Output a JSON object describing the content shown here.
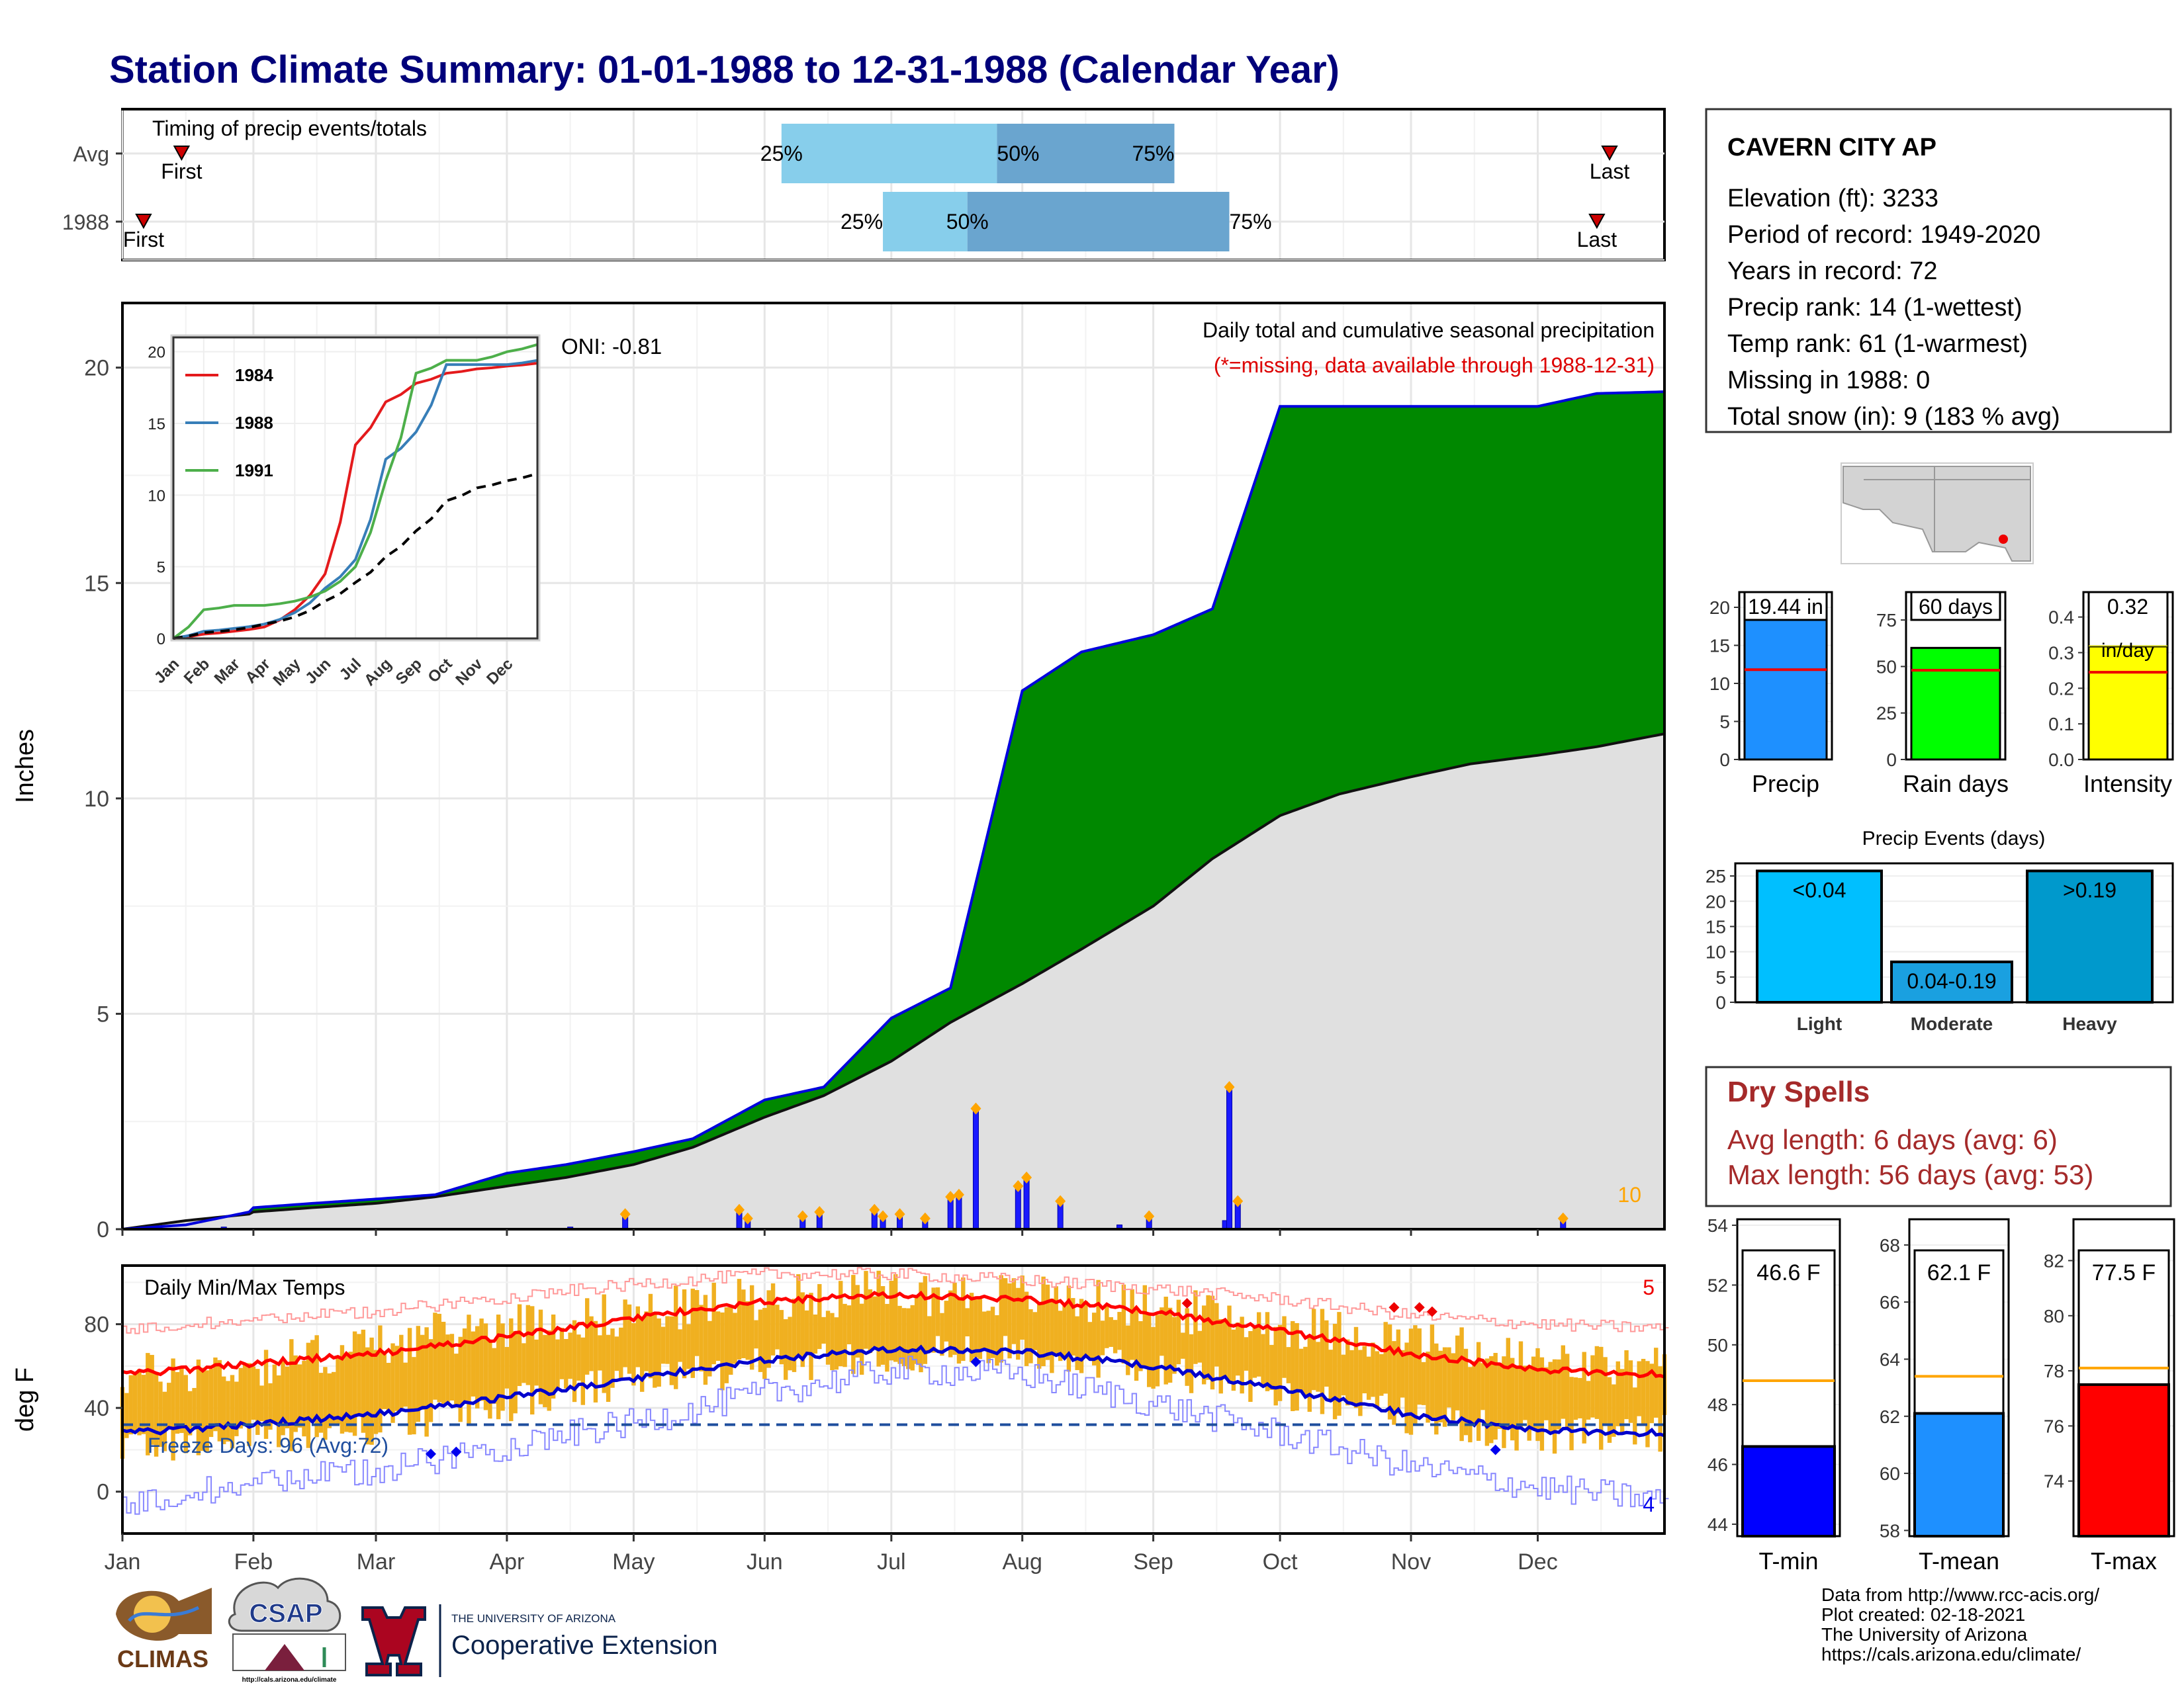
{
  "title": "Station Climate Summary: 01-01-1988 to 12-31-1988 (Calendar Year)",
  "colors": {
    "title": "#00007a",
    "precip_green": "#008800",
    "precip_brown": "#7a4a0a",
    "avg_gray": "#e0e0e0",
    "daily_bar_blue": "#1a1aff",
    "quart_light": "#87ceeb",
    "quart_dark": "#6aa5cf",
    "temp_bar": "#f0b020",
    "tmax_line": "#ff0000",
    "tmin_line": "#0000cc",
    "dry_spell_text": "#a52a2a",
    "missing_note": "#dd0000",
    "extreme_count": "#ffa500"
  },
  "timing": {
    "label": "Timing of precip events/totals",
    "rows": [
      {
        "name": "Avg",
        "first_label": "First",
        "last_label": "Last",
        "first_date": "01-15",
        "last_date": "12-18",
        "q25": "06-05",
        "q50": "07-26",
        "q75": "09-06",
        "q25_label": "25%",
        "q50_label": "50%",
        "q75_label": "75%"
      },
      {
        "name": "1988",
        "first_label": "First",
        "last_label": "Last",
        "first_date": "01-06",
        "last_date": "12-15",
        "q25": "06-29",
        "q50": "07-19",
        "q75": "09-19",
        "q25_label": "25%",
        "q50_label": "50%",
        "q75_label": "75%"
      }
    ]
  },
  "main_panel": {
    "ylabel": "Inches",
    "yticks": [
      "0",
      "5",
      "10",
      "15",
      "20"
    ],
    "header": "Daily total and cumulative seasonal precipitation",
    "missing_note": "(*=missing, data available through 1988-12-31)",
    "oni": "ONI: -0.81",
    "extreme_count": "10"
  },
  "inset": {
    "yticks": [
      "0",
      "5",
      "10",
      "15",
      "20"
    ],
    "months": [
      "Jan",
      "Feb",
      "Mar",
      "Apr",
      "May",
      "Jun",
      "Jul",
      "Aug",
      "Sep",
      "Oct",
      "Nov",
      "Dec"
    ],
    "legend": [
      {
        "name": "1984",
        "color": "#e41a1c"
      },
      {
        "name": "1988",
        "color": "#377eb8"
      },
      {
        "name": "1991",
        "color": "#4daf4a"
      }
    ]
  },
  "temp_panel": {
    "ylabel": "deg F",
    "label": "Daily Min/Max Temps",
    "yticks": [
      "0",
      "40",
      "80"
    ],
    "freeze_label": "Freeze Days: 96 (Avg:72)",
    "hot_count": "5",
    "cold_count": "4",
    "freeze_line": 32
  },
  "x_months": [
    "Jan",
    "Feb",
    "Mar",
    "Apr",
    "May",
    "Jun",
    "Jul",
    "Aug",
    "Sep",
    "Oct",
    "Nov",
    "Dec"
  ],
  "station": {
    "name": "CAVERN CITY AP",
    "lines": [
      "Elevation (ft): 3233",
      "Period of record: 1949-2020",
      "Years in record: 72",
      "Precip rank: 14 (1-wettest)",
      "Temp rank: 61 (1-warmest)",
      "Missing in 1988: 0",
      "Total snow (in): 9 (183 % avg)"
    ]
  },
  "summary_bars": [
    {
      "label": "Precip",
      "value_label": "19.44 in",
      "value": 19.44,
      "avg": 11.8,
      "ymax": 22,
      "yticks": [
        "0",
        "5",
        "10",
        "15",
        "20"
      ],
      "color": "#1e90ff"
    },
    {
      "label": "Rain days",
      "value_label": "60 days",
      "value": 60,
      "avg": 48,
      "ymax": 90,
      "yticks": [
        "0",
        "25",
        "50",
        "75"
      ],
      "color": "#00ff00"
    },
    {
      "label": "Intensity",
      "value_label": "0.32",
      "value_label2": "in/day",
      "value": 0.32,
      "avg": 0.245,
      "ymax": 0.47,
      "yticks": [
        "0.0",
        "0.1",
        "0.2",
        "0.3",
        "0.4"
      ],
      "color": "#ffff00"
    }
  ],
  "precip_events": {
    "title": "Precip Events (days)",
    "yticks": [
      "0",
      "5",
      "10",
      "15",
      "20",
      "25"
    ],
    "bars": [
      {
        "category": "Light",
        "label": "<0.04",
        "value": 26,
        "color": "#00bfff"
      },
      {
        "category": "Moderate",
        "label": "0.04-0.19",
        "value": 8,
        "color": "#1aa0e0"
      },
      {
        "category": "Heavy",
        "label": ">0.19",
        "value": 26,
        "color": "#0099cc"
      }
    ]
  },
  "dry_spells": {
    "title": "Dry Spells",
    "avg_line": "Avg length: 6 days (avg: 6)",
    "max_line": "Max length: 56 days (avg: 53)"
  },
  "temp_bars": [
    {
      "label": "T-min",
      "value_label": "46.6 F",
      "value": 46.6,
      "avg": 48.8,
      "ymin": 43.6,
      "ymax": 54.2,
      "yticks": [
        "44",
        "46",
        "48",
        "50",
        "52",
        "54"
      ],
      "color": "#0000ff"
    },
    {
      "label": "T-mean",
      "value_label": "62.1 F",
      "value": 62.1,
      "avg": 63.4,
      "ymin": 57.8,
      "ymax": 68.9,
      "yticks": [
        "58",
        "60",
        "62",
        "64",
        "66",
        "68"
      ],
      "color": "#1e90ff"
    },
    {
      "label": "T-max",
      "value_label": "77.5 F",
      "value": 77.5,
      "avg": 78.1,
      "ymin": 72.0,
      "ymax": 83.5,
      "yticks": [
        "74",
        "76",
        "78",
        "80",
        "82"
      ],
      "color": "#ff0000"
    }
  ],
  "logos": {
    "climas": "CLIMAS",
    "csap": "CSAP",
    "csap_url": "http://cals.arizona.edu/climate",
    "ua_top": "THE UNIVERSITY OF ARIZONA",
    "ua_bottom": "Cooperative Extension"
  },
  "footer": [
    "Data from http://www.rcc-acis.org/",
    "Plot created: 02-18-2021",
    "The University of Arizona",
    "https://cals.arizona.edu/climate/"
  ],
  "chart_data": [
    {
      "type": "area",
      "title": "Daily total and cumulative seasonal precipitation",
      "ylabel": "Inches",
      "ylim": [
        0,
        21.5
      ],
      "x": [
        "01-01",
        "01-16",
        "01-31",
        "02-01",
        "02-15",
        "03-01",
        "03-15",
        "04-01",
        "04-15",
        "05-01",
        "05-15",
        "06-01",
        "06-15",
        "07-01",
        "07-15",
        "08-01",
        "08-15",
        "09-01",
        "09-15",
        "10-01",
        "10-15",
        "11-01",
        "11-15",
        "12-01",
        "12-15",
        "12-31"
      ],
      "series": [
        {
          "name": "1988",
          "values": [
            0,
            0.1,
            0.4,
            0.5,
            0.6,
            0.7,
            0.8,
            1.3,
            1.5,
            1.8,
            2.1,
            3.0,
            3.3,
            4.9,
            5.6,
            12.5,
            13.4,
            13.8,
            14.4,
            19.1,
            19.1,
            19.1,
            19.1,
            19.1,
            19.4,
            19.44
          ]
        },
        {
          "name": "Avg",
          "values": [
            0,
            0.2,
            0.35,
            0.4,
            0.5,
            0.6,
            0.75,
            1.0,
            1.2,
            1.5,
            1.9,
            2.6,
            3.1,
            3.9,
            4.8,
            5.7,
            6.5,
            7.5,
            8.6,
            9.6,
            10.1,
            10.5,
            10.8,
            11.0,
            11.2,
            11.5
          ]
        }
      ],
      "daily_precip": [
        {
          "date": "01-25",
          "value": 0.05
        },
        {
          "date": "04-16",
          "value": 0.05
        },
        {
          "date": "04-29",
          "value": 0.35
        },
        {
          "date": "05-26",
          "value": 0.45
        },
        {
          "date": "05-28",
          "value": 0.25
        },
        {
          "date": "06-10",
          "value": 0.3
        },
        {
          "date": "06-14",
          "value": 0.4
        },
        {
          "date": "06-27",
          "value": 0.45
        },
        {
          "date": "06-29",
          "value": 0.3
        },
        {
          "date": "07-03",
          "value": 0.35
        },
        {
          "date": "07-09",
          "value": 0.25
        },
        {
          "date": "07-15",
          "value": 0.75
        },
        {
          "date": "07-17",
          "value": 0.8
        },
        {
          "date": "07-21",
          "value": 2.8
        },
        {
          "date": "07-31",
          "value": 1.0
        },
        {
          "date": "08-02",
          "value": 1.2
        },
        {
          "date": "08-10",
          "value": 0.65
        },
        {
          "date": "08-24",
          "value": 0.1
        },
        {
          "date": "08-31",
          "value": 0.3
        },
        {
          "date": "09-18",
          "value": 0.2
        },
        {
          "date": "09-19",
          "value": 3.3
        },
        {
          "date": "09-21",
          "value": 0.65
        },
        {
          "date": "12-07",
          "value": 0.25
        }
      ]
    },
    {
      "type": "line",
      "title": "",
      "x": [
        "Jan",
        "Feb",
        "Mar",
        "Apr",
        "May",
        "Jun",
        "Jul",
        "Aug",
        "Sep",
        "Oct",
        "Nov",
        "Dec",
        "Dec-end"
      ],
      "ylim": [
        0,
        21
      ],
      "series": [
        {
          "name": "1984",
          "values": [
            0,
            0.3,
            0.5,
            0.8,
            2.0,
            4.5,
            13.5,
            16.5,
            17.8,
            18.5,
            18.8,
            19.0,
            19.2
          ]
        },
        {
          "name": "1988",
          "values": [
            0,
            0.5,
            0.7,
            1.0,
            1.8,
            3.5,
            5.5,
            12.5,
            14.4,
            19.1,
            19.1,
            19.1,
            19.4
          ]
        },
        {
          "name": "1991",
          "values": [
            0,
            2.0,
            2.3,
            2.3,
            2.6,
            3.3,
            5.0,
            11.0,
            18.5,
            19.4,
            19.4,
            20.0,
            20.5
          ]
        },
        {
          "name": "Avg",
          "values": [
            0,
            0.4,
            0.6,
            1.0,
            1.5,
            2.6,
            3.9,
            5.7,
            7.5,
            9.6,
            10.5,
            11.0,
            11.5
          ]
        }
      ]
    },
    {
      "type": "line",
      "title": "Daily Min/Max Temps",
      "ylabel": "deg F",
      "ylim": [
        -20,
        108
      ],
      "x": [
        "01-01",
        "02-01",
        "03-01",
        "04-01",
        "05-01",
        "06-01",
        "07-01",
        "08-01",
        "09-01",
        "10-01",
        "11-01",
        "12-01",
        "12-31"
      ],
      "series": [
        {
          "name": "Normal max",
          "values": [
            56,
            61,
            66,
            74,
            83,
            91,
            94,
            92,
            86,
            77,
            66,
            58,
            56
          ]
        },
        {
          "name": "Normal min",
          "values": [
            28,
            32,
            37,
            45,
            54,
            63,
            68,
            67,
            60,
            49,
            37,
            29,
            28
          ]
        },
        {
          "name": "Record max",
          "values": [
            78,
            82,
            86,
            93,
            99,
            104,
            104,
            101,
            97,
            92,
            84,
            80,
            78
          ]
        },
        {
          "name": "Record min",
          "values": [
            -5,
            4,
            10,
            22,
            33,
            47,
            58,
            56,
            42,
            28,
            12,
            2,
            -4
          ]
        },
        {
          "name": "Observed max",
          "values": [
            55,
            60,
            70,
            80,
            85,
            93,
            95,
            94,
            88,
            80,
            72,
            62,
            58
          ]
        },
        {
          "name": "Observed min",
          "values": [
            22,
            26,
            30,
            42,
            52,
            60,
            66,
            66,
            58,
            48,
            36,
            26,
            28
          ]
        }
      ]
    },
    {
      "type": "bar",
      "title": "",
      "categories": [
        "Precip",
        "Rain days",
        "Intensity"
      ],
      "values": [
        19.44,
        60,
        0.32
      ]
    },
    {
      "type": "bar",
      "title": "Precip Events (days)",
      "categories": [
        "Light",
        "Moderate",
        "Heavy"
      ],
      "values": [
        26,
        8,
        26
      ]
    },
    {
      "type": "bar",
      "title": "",
      "categories": [
        "T-min",
        "T-mean",
        "T-max"
      ],
      "values": [
        46.6,
        62.1,
        77.5
      ]
    }
  ]
}
